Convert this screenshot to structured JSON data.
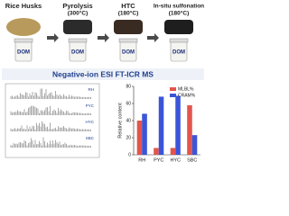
{
  "top": {
    "steps": [
      {
        "label": "Rice Husks",
        "dom": "DOM"
      },
      {
        "label": "Pyrolysis",
        "temp": "(300°C)",
        "dom": "DOM"
      },
      {
        "label": "HTC",
        "temp": "(180°C)",
        "dom": "DOM"
      },
      {
        "label": "In-situ sulfonation",
        "temp": "(180°C)",
        "dom": "DOM"
      }
    ]
  },
  "banner": "Negative-ion ESI FT-ICR MS",
  "spectra": {
    "labels": [
      "RH",
      "PYC",
      "HYC",
      "SBC"
    ]
  },
  "chart_data": {
    "type": "bar",
    "y_label": "Relative content",
    "categories": [
      "RH",
      "PYC",
      "HYC",
      "SBC"
    ],
    "series": [
      {
        "name": "MLBL%",
        "color": "#e2554d",
        "values": [
          40,
          8,
          8,
          58
        ]
      },
      {
        "name": "CRAM%",
        "color": "#3a55d8",
        "values": [
          48,
          68,
          69,
          23
        ]
      }
    ],
    "ylim": [
      0,
      80
    ],
    "yticks": [
      0,
      20,
      40,
      60,
      80
    ],
    "legend": "top-right"
  }
}
